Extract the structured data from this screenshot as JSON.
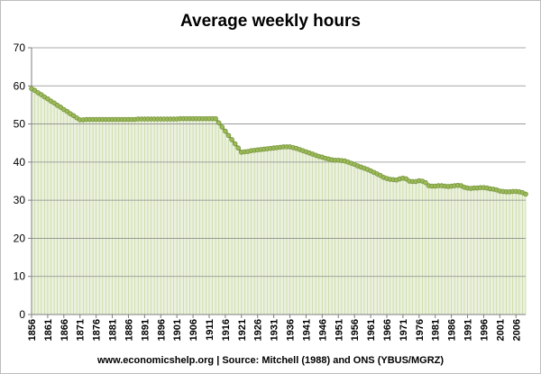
{
  "chart_data": {
    "type": "area",
    "title": "Average weekly hours",
    "source": "www.economicshelp.org | Source: Mitchell (1988) and ONS (YBUS/MGRZ)",
    "xlabel": "",
    "ylabel": "",
    "ylim": [
      0,
      70
    ],
    "yticks": [
      0,
      10,
      20,
      30,
      40,
      50,
      60,
      70
    ],
    "x_tick_labels": [
      "1856",
      "1861",
      "1866",
      "1871",
      "1876",
      "1881",
      "1886",
      "1891",
      "1896",
      "1901",
      "1906",
      "1911",
      "1916",
      "1921",
      "1926",
      "1931",
      "1936",
      "1941",
      "1946",
      "1951",
      "1956",
      "1961",
      "1966",
      "1971",
      "1976",
      "1981",
      "1986",
      "1991",
      "1996",
      "2001",
      "2006"
    ],
    "grid": true,
    "legend": "none",
    "colors": {
      "line": "#77933c",
      "marker": "#9bbb59",
      "fill": "#ebf1de",
      "drop": "#c3d69b",
      "grid": "#8c8c8c"
    },
    "series": [
      {
        "x": [
          1856,
          1857,
          1858,
          1859,
          1860,
          1861,
          1862,
          1863,
          1864,
          1865,
          1866,
          1867,
          1868,
          1869,
          1870,
          1871,
          1872,
          1873,
          1874,
          1875,
          1876,
          1877,
          1878,
          1879,
          1880,
          1881,
          1882,
          1883,
          1884,
          1885,
          1886,
          1887,
          1888,
          1889,
          1890,
          1891,
          1892,
          1893,
          1894,
          1895,
          1896,
          1897,
          1898,
          1899,
          1900,
          1901,
          1902,
          1903,
          1904,
          1905,
          1906,
          1907,
          1908,
          1909,
          1910,
          1911,
          1912,
          1913,
          1914,
          1915,
          1916,
          1917,
          1918,
          1919,
          1920,
          1921,
          1922,
          1923,
          1924,
          1925,
          1926,
          1927,
          1928,
          1929,
          1930,
          1931,
          1932,
          1933,
          1934,
          1935,
          1936,
          1937,
          1938,
          1939,
          1940,
          1941,
          1942,
          1943,
          1944,
          1945,
          1946,
          1947,
          1948,
          1949,
          1950,
          1951,
          1952,
          1953,
          1954,
          1955,
          1956,
          1957,
          1958,
          1959,
          1960,
          1961,
          1962,
          1963,
          1964,
          1965,
          1966,
          1967,
          1968,
          1969,
          1970,
          1971,
          1972,
          1973,
          1974,
          1975,
          1976,
          1977,
          1978,
          1979,
          1980,
          1981,
          1982,
          1983,
          1984,
          1985,
          1986,
          1987,
          1988,
          1989,
          1990,
          1991,
          1992,
          1993,
          1994,
          1995,
          1996,
          1997,
          1998,
          1999,
          2000,
          2001,
          2002,
          2003,
          2004,
          2005,
          2006,
          2007,
          2008,
          2009
        ],
        "values": [
          59.3,
          58.8,
          58.2,
          57.7,
          57.1,
          56.6,
          56.0,
          55.5,
          54.9,
          54.4,
          53.8,
          53.3,
          52.7,
          52.2,
          51.6,
          51.1,
          51.1,
          51.2,
          51.2,
          51.2,
          51.2,
          51.2,
          51.2,
          51.2,
          51.2,
          51.2,
          51.2,
          51.2,
          51.2,
          51.2,
          51.2,
          51.2,
          51.2,
          51.3,
          51.3,
          51.3,
          51.3,
          51.3,
          51.3,
          51.3,
          51.3,
          51.3,
          51.3,
          51.3,
          51.3,
          51.3,
          51.4,
          51.4,
          51.4,
          51.4,
          51.4,
          51.4,
          51.4,
          51.4,
          51.4,
          51.4,
          51.4,
          51.4,
          50.3,
          49.2,
          48.1,
          47.0,
          45.9,
          44.8,
          43.7,
          42.6,
          42.7,
          42.8,
          43.0,
          43.1,
          43.2,
          43.3,
          43.4,
          43.5,
          43.6,
          43.7,
          43.8,
          43.9,
          44.0,
          44.0,
          44.0,
          43.8,
          43.6,
          43.3,
          43.0,
          42.7,
          42.4,
          42.1,
          41.8,
          41.5,
          41.3,
          41.0,
          40.8,
          40.6,
          40.5,
          40.5,
          40.4,
          40.3,
          40.0,
          39.7,
          39.4,
          39.0,
          38.7,
          38.4,
          38.1,
          37.7,
          37.3,
          36.9,
          36.5,
          36.0,
          35.7,
          35.5,
          35.4,
          35.3,
          35.6,
          35.8,
          35.6,
          35.0,
          34.9,
          34.9,
          35.1,
          35.0,
          34.6,
          33.8,
          33.7,
          33.7,
          33.8,
          33.8,
          33.7,
          33.6,
          33.7,
          33.8,
          33.9,
          33.8,
          33.4,
          33.2,
          33.1,
          33.2,
          33.2,
          33.3,
          33.3,
          33.2,
          33.0,
          32.9,
          32.7,
          32.4,
          32.3,
          32.2,
          32.2,
          32.3,
          32.3,
          32.2,
          32.0,
          31.6
        ]
      }
    ]
  }
}
